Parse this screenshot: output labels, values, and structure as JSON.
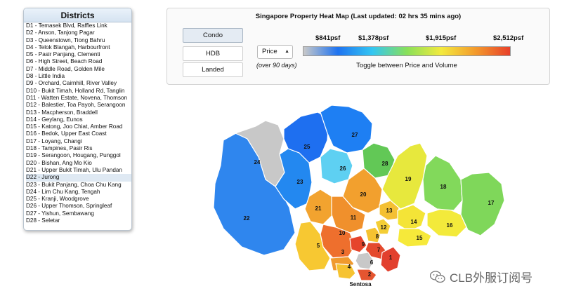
{
  "districts": {
    "title": "Districts",
    "items": [
      "D1 - Temasek Blvd, Raffles Link",
      "D2 - Anson, Tanjong Pagar",
      "D3 - Queenstown, Tiong Bahru",
      "D4 - Telok Blangah, Harbourfront",
      "D5 - Pasir Panjang, Clementi",
      "D6 - High Street, Beach Road",
      "D7 - Middle Road, Golden Mile",
      "D8 - Little India",
      "D9 - Orchard, Cairnhill, River Valley",
      "D10 - Bukit Timah, Holland Rd, Tanglin",
      "D11 - Watten Estate, Novena, Thomson",
      "D12 - Balestier, Toa Payoh, Serangoon",
      "D13 - Macpherson, Braddell",
      "D14 - Geylang, Eunos",
      "D15 - Katong, Joo Chiat, Amber Road",
      "D16 - Bedok, Upper East Coast",
      "D17 - Loyang, Changi",
      "D18 - Tampines, Pasir Ris",
      "D19 - Serangoon, Hougang, Punggol",
      "D20 - Bishan, Ang Mo Kio",
      "D21 - Upper Bukit Timah, Ulu Pandan",
      "D22 - Jurong",
      "D23 - Bukit Panjang, Choa Chu Kang",
      "D24 - Lim Chu Kang, Tengah",
      "D25 - Kranji, Woodgrove",
      "D26 - Upper Thomson, Springleaf",
      "D27 - Yishun, Sembawang",
      "D28 - Seletar"
    ],
    "selected_index": 21
  },
  "panel": {
    "title": "Singapore Property Heat Map (Last updated: 02 hrs 35 mins ago)",
    "types": [
      "Condo",
      "HDB",
      "Landed"
    ],
    "active_type": "Condo",
    "metric_select": "Price",
    "period": "(over 90 days)",
    "scale_ticks": [
      "$841psf",
      "$1,378psf",
      "$1,915psf",
      "$2,512psf"
    ],
    "toggle_note": "Toggle between Price and Volume",
    "gradient_colors": [
      "#c9c9c9",
      "#1e73f0",
      "#33c6f2",
      "#88e05a",
      "#f3ea3e",
      "#f39a2c",
      "#e8402a"
    ]
  },
  "map": {
    "sentosa_label": "Sentosa",
    "no_data_color": "#c8c8c8",
    "regions": [
      {
        "id": "1",
        "color": "#e2402e"
      },
      {
        "id": "2",
        "color": "#e55530"
      },
      {
        "id": "3",
        "color": "#f09a2e"
      },
      {
        "id": "4",
        "color": "#f6c331"
      },
      {
        "id": "5",
        "color": "#f7c832"
      },
      {
        "id": "6",
        "color": "#c8c8c8"
      },
      {
        "id": "7",
        "color": "#e44a2e"
      },
      {
        "id": "8",
        "color": "#f5c230"
      },
      {
        "id": "9",
        "color": "#e6452c"
      },
      {
        "id": "10",
        "color": "#ee6f2d"
      },
      {
        "id": "11",
        "color": "#f0902c"
      },
      {
        "id": "12",
        "color": "#f4ce36"
      },
      {
        "id": "13",
        "color": "#f4c033"
      },
      {
        "id": "14",
        "color": "#f4e437"
      },
      {
        "id": "15",
        "color": "#f6e93a"
      },
      {
        "id": "16",
        "color": "#f3ea3b"
      },
      {
        "id": "17",
        "color": "#7fd75a"
      },
      {
        "id": "18",
        "color": "#82d95b"
      },
      {
        "id": "19",
        "color": "#e7e83d"
      },
      {
        "id": "20",
        "color": "#f2a02e"
      },
      {
        "id": "21",
        "color": "#f2a32f"
      },
      {
        "id": "22",
        "color": "#2f86ee"
      },
      {
        "id": "23",
        "color": "#2388f0"
      },
      {
        "id": "24",
        "color": "#c8c8c8"
      },
      {
        "id": "25",
        "color": "#1e6ff0"
      },
      {
        "id": "26",
        "color": "#5ed0f2"
      },
      {
        "id": "27",
        "color": "#1e7ff3"
      },
      {
        "id": "28",
        "color": "#62c856"
      }
    ]
  },
  "watermark": {
    "text": "CLB外服订阅号",
    "icon": "wechat-icon"
  }
}
